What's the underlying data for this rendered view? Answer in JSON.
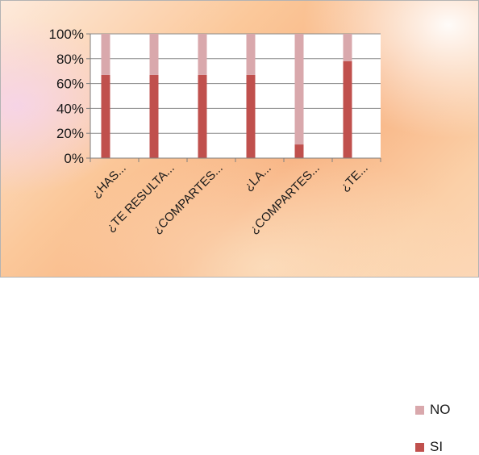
{
  "chart_data": {
    "type": "bar",
    "stacked": true,
    "percent_stacked": true,
    "categories": [
      "¿HAS...",
      "¿TE RESULTA...",
      "¿COMPARTES...",
      "¿LA...",
      "¿COMPARTES...",
      "¿TE..."
    ],
    "series": [
      {
        "name": "SI",
        "color": "#c0504d",
        "values": [
          67,
          67,
          67,
          67,
          11,
          78
        ]
      },
      {
        "name": "NO",
        "color": "#d9a8ac",
        "values": [
          33,
          33,
          33,
          33,
          89,
          22
        ]
      }
    ],
    "yticks": [
      "0%",
      "20%",
      "40%",
      "60%",
      "80%",
      "100%"
    ],
    "ylim": [
      0,
      100
    ],
    "grid": true,
    "legend_position": "right",
    "title": "",
    "xlabel": "",
    "ylabel": ""
  }
}
